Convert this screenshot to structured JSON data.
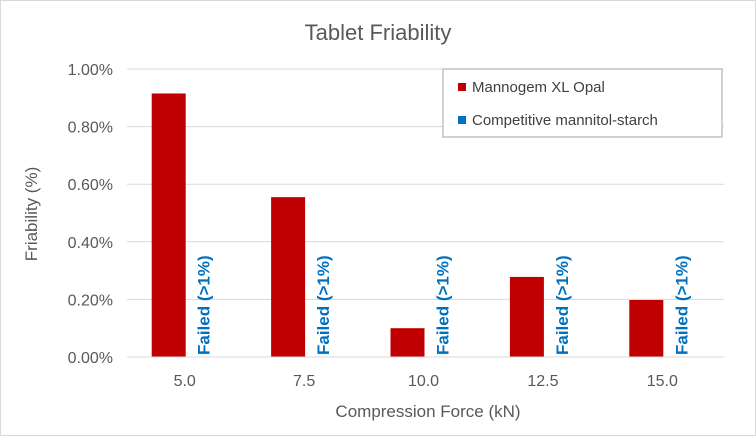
{
  "chart_data": {
    "type": "bar",
    "title": "Tablet Friability",
    "xlabel": "Compression Force (kN)",
    "ylabel": "Friability (%)",
    "categories": [
      "5.0",
      "7.5",
      "10.0",
      "12.5",
      "15.0"
    ],
    "series": [
      {
        "name": "Mannogem XL Opal",
        "color": "#c00000",
        "values": [
          0.915,
          0.555,
          0.1,
          0.278,
          0.198
        ]
      },
      {
        "name": "Competitive mannitol-starch",
        "color": "#0070c0",
        "values": [
          null,
          null,
          null,
          null,
          null
        ],
        "annotations": [
          "Failed (>1%)",
          "Failed (>1%)",
          "Failed (>1%)",
          "Failed (>1%)",
          "Failed (>1%)"
        ]
      }
    ],
    "ylim": [
      0,
      1.0
    ],
    "yticks": [
      "0.00%",
      "0.20%",
      "0.40%",
      "0.60%",
      "0.80%",
      "1.00%"
    ],
    "grid": true,
    "legend": "top-right"
  }
}
